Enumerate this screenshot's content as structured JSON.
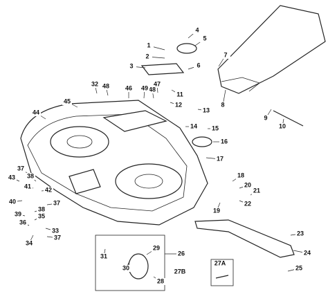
{
  "callouts": [
    "1",
    "2",
    "3",
    "4",
    "5",
    "6",
    "7",
    "8",
    "9",
    "10",
    "11",
    "12",
    "13",
    "14",
    "15",
    "16",
    "17",
    "18",
    "19",
    "20",
    "21",
    "22",
    "23",
    "24",
    "25",
    "26",
    "27A",
    "27B",
    "28",
    "29",
    "30",
    "31",
    "32",
    "33",
    "34",
    "35",
    "36",
    "37",
    "37",
    "37",
    "38",
    "38",
    "39",
    "40",
    "41",
    "42",
    "43",
    "44",
    "45",
    "46",
    "47",
    "48",
    "48",
    "49"
  ]
}
